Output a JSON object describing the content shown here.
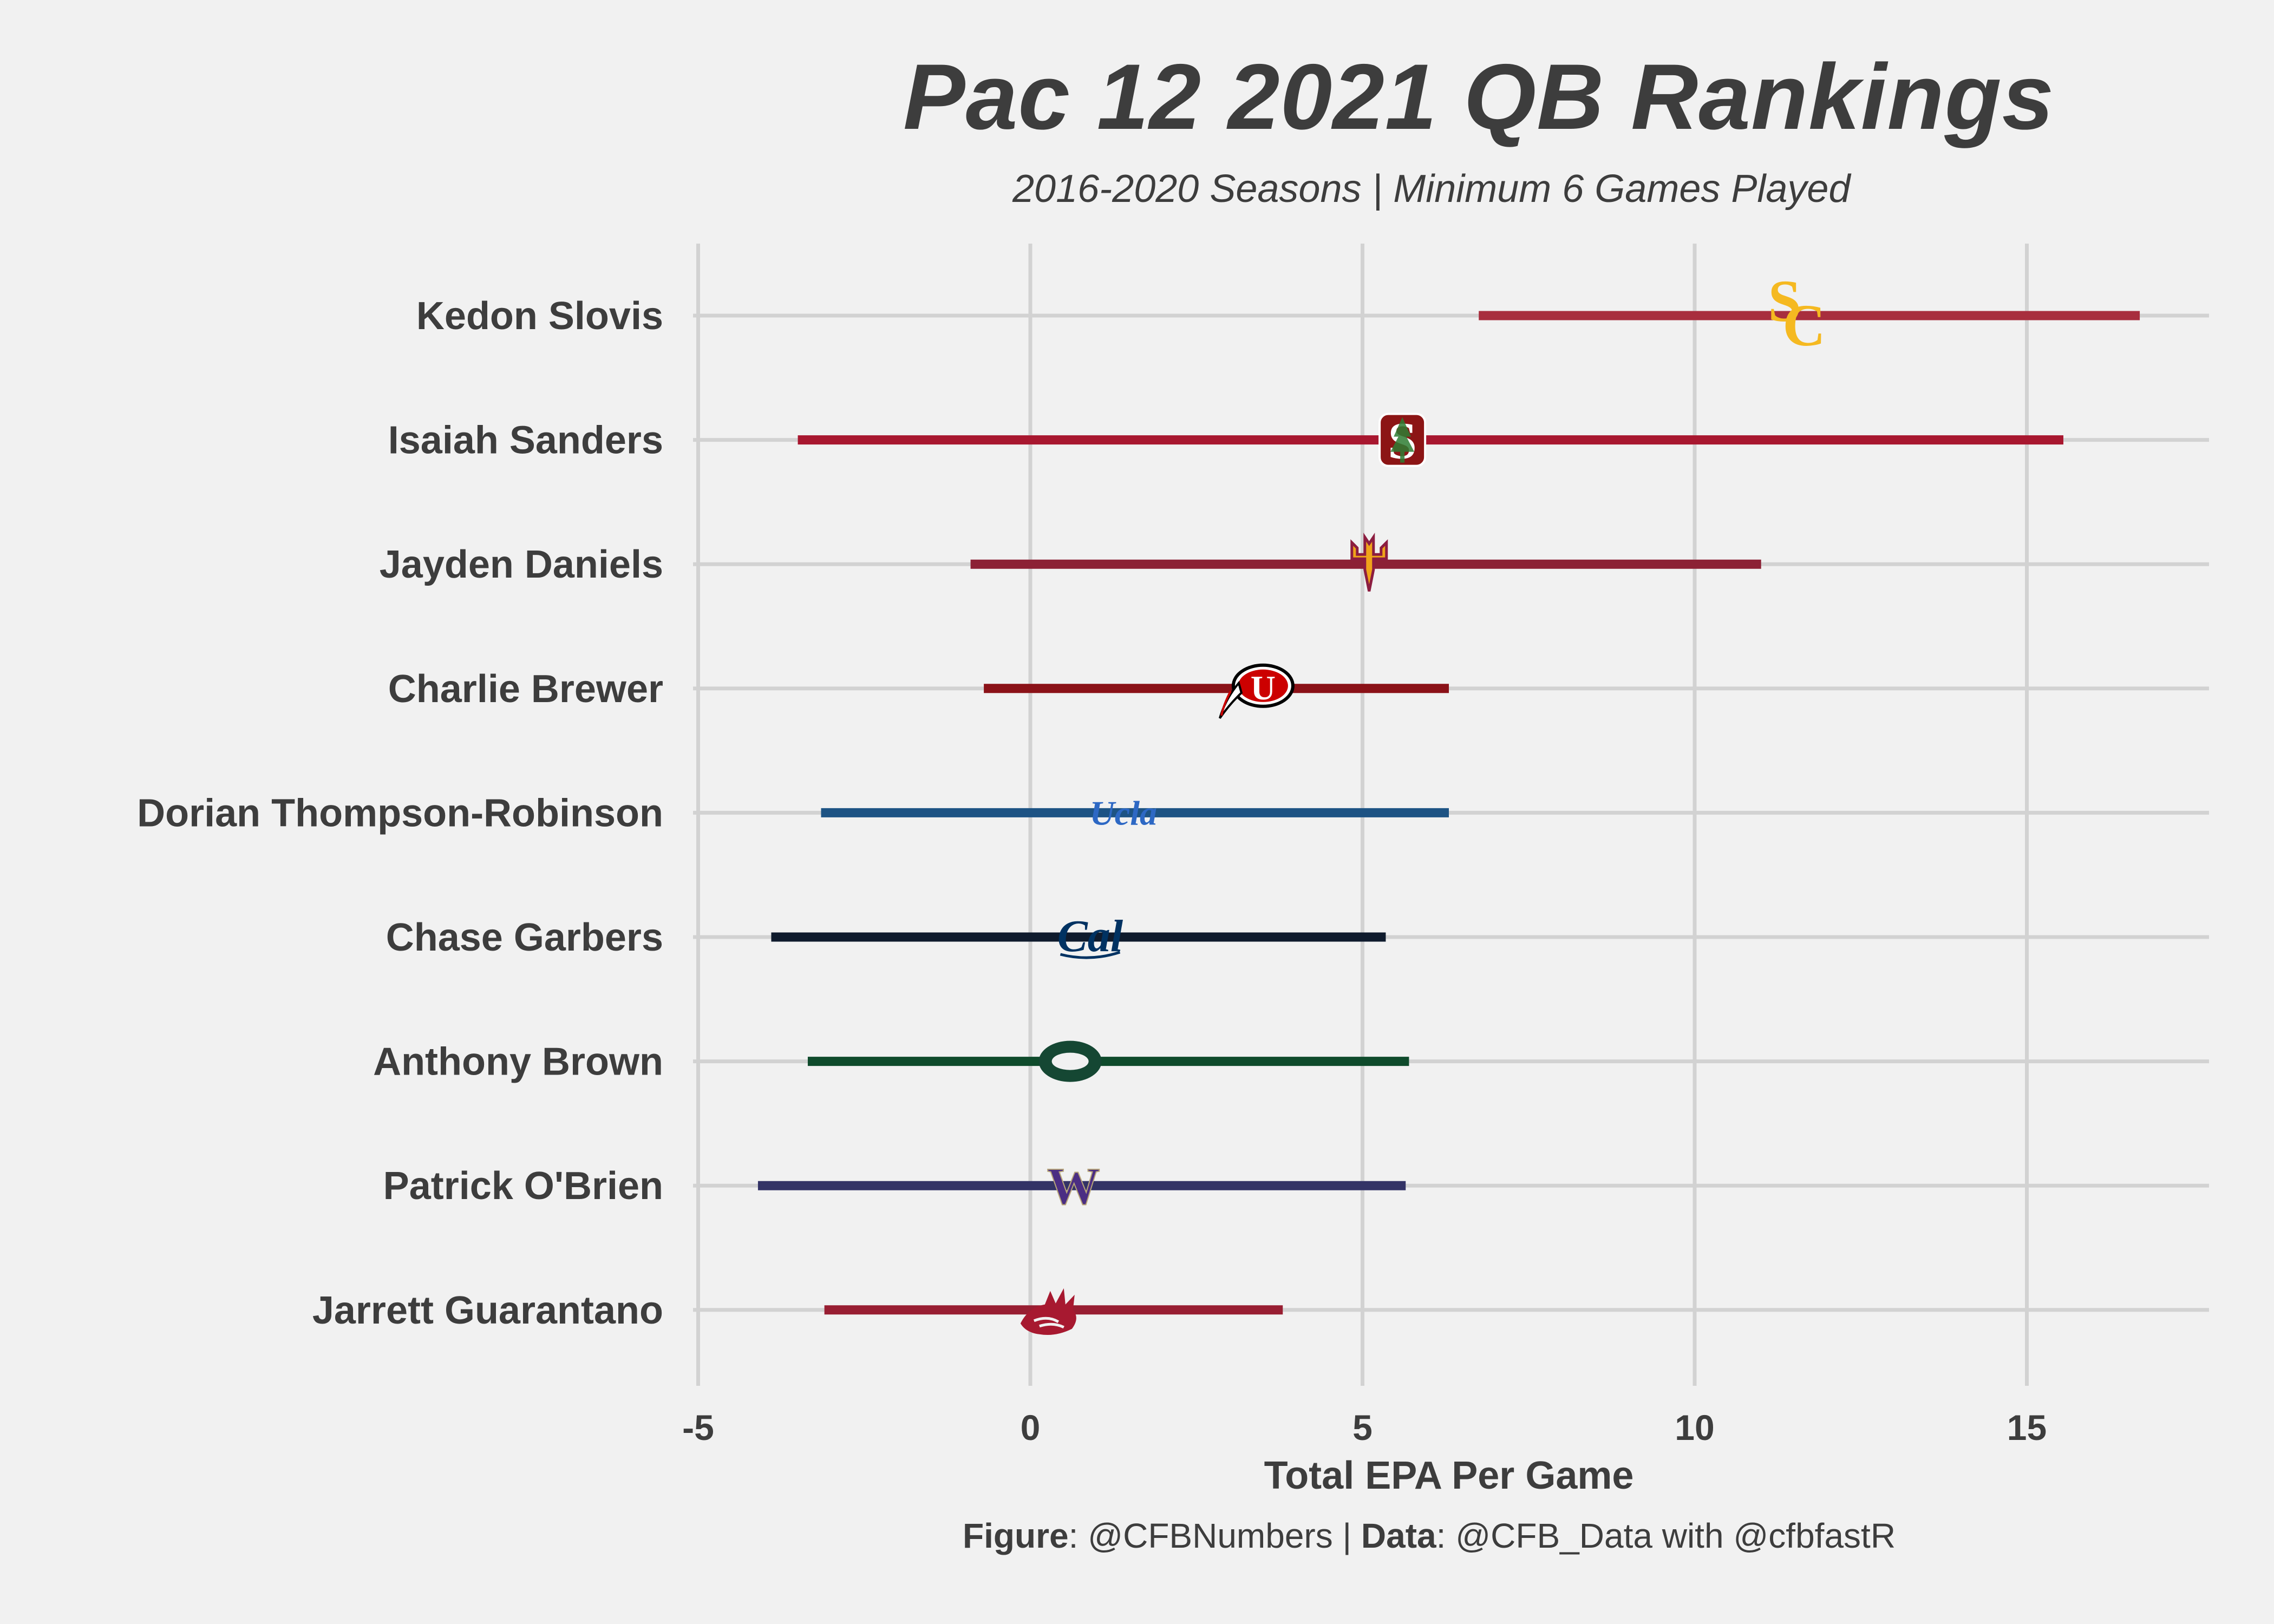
{
  "chart_data": {
    "type": "range",
    "title": "Pac 12 2021 QB Rankings",
    "subtitle": "2016-2020 Seasons | Minimum 6 Games Played",
    "xlabel": "Total EPA Per Game",
    "xlim": [
      -5,
      17.8
    ],
    "x_ticks": [
      -5,
      0,
      5,
      10,
      15
    ],
    "x_tick_labels": [
      "-5",
      "0",
      "5",
      "10",
      "15"
    ],
    "grid": true,
    "players": [
      {
        "name": "Kedon Slovis",
        "low": 6.75,
        "high": 16.7,
        "mean": 11.5,
        "team": "USC",
        "color": "#a82e3e",
        "logo_color": "#f5b921",
        "logo_icon": "usc-logo-icon"
      },
      {
        "name": "Isaiah Sanders",
        "low": -3.5,
        "high": 15.55,
        "mean": 5.6,
        "team": "Stanford",
        "color": "#a8172f",
        "logo_color": "#8c1515",
        "logo_icon": "stanford-logo-icon"
      },
      {
        "name": "Jayden Daniels",
        "low": -0.9,
        "high": 11.0,
        "mean": 5.1,
        "team": "Arizona State",
        "color": "#8c2135",
        "logo_color": "#f0a41a",
        "logo_icon": "asu-logo-icon"
      },
      {
        "name": "Charlie Brewer",
        "low": -0.7,
        "high": 6.3,
        "mean": 3.3,
        "team": "Utah",
        "color": "#8b1218",
        "logo_color": "#cc0000",
        "logo_icon": "utah-logo-icon"
      },
      {
        "name": "Dorian Thompson-Robinson",
        "low": -3.15,
        "high": 6.3,
        "mean": 1.4,
        "team": "UCLA",
        "color": "#1d5384",
        "logo_color": "#2d68c4",
        "logo_icon": "ucla-logo-icon"
      },
      {
        "name": "Chase Garbers",
        "low": -3.9,
        "high": 5.35,
        "mean": 0.9,
        "team": "Cal",
        "color": "#0f1b2d",
        "logo_color": "#003262",
        "logo_icon": "cal-logo-icon"
      },
      {
        "name": "Anthony Brown",
        "low": -3.35,
        "high": 5.7,
        "mean": 0.6,
        "team": "Oregon",
        "color": "#0f4b2c",
        "logo_color": "#154733",
        "logo_icon": "oregon-logo-icon"
      },
      {
        "name": "Patrick O'Brien",
        "low": -4.1,
        "high": 5.65,
        "mean": 0.65,
        "team": "Washington",
        "color": "#333366",
        "logo_color": "#4b2e83",
        "logo_icon": "washington-logo-icon"
      },
      {
        "name": "Jarrett Guarantano",
        "low": -3.1,
        "high": 3.8,
        "mean": 0.3,
        "team": "Washington State",
        "color": "#981e32",
        "logo_color": "#a71930",
        "logo_icon": "wsu-logo-icon"
      }
    ]
  },
  "caption": {
    "figure_label": "Figure",
    "figure_value": ": @CFBNumbers | ",
    "data_label": "Data",
    "data_value": ": @CFB_Data with @cfbfastR"
  }
}
